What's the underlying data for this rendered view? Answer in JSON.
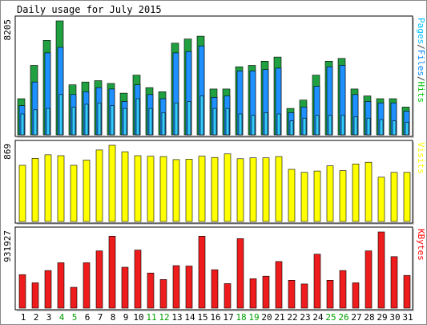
{
  "chart_data": {
    "type": "bar",
    "title": "Daily usage for July 2015",
    "categories": [
      "1",
      "2",
      "3",
      "4",
      "5",
      "6",
      "7",
      "8",
      "9",
      "10",
      "11",
      "12",
      "13",
      "14",
      "15",
      "16",
      "17",
      "18",
      "19",
      "20",
      "21",
      "22",
      "23",
      "24",
      "25",
      "26",
      "27",
      "28",
      "29",
      "30",
      "31"
    ],
    "weekend_days": [
      "4",
      "5",
      "11",
      "12",
      "18",
      "19",
      "25",
      "26"
    ],
    "panels": [
      {
        "id": "hits-files-pages",
        "ymax": 8205,
        "ymax_label": "8205",
        "right_labels": [
          {
            "text": "Pages",
            "color": "#00c0ff"
          },
          {
            "text": "/",
            "color": "#333333"
          },
          {
            "text": "Files",
            "color": "#0080ff"
          },
          {
            "text": "/",
            "color": "#333333"
          },
          {
            "text": "Hits",
            "color": "#00c000"
          }
        ],
        "series": [
          {
            "name": "Hits",
            "color": "#20a040",
            "values": [
              2600,
              5000,
              6800,
              8205,
              3600,
              3800,
              3900,
              3700,
              3000,
              4300,
              3400,
              3100,
              6600,
              6900,
              7100,
              3300,
              3300,
              4900,
              5000,
              5300,
              5600,
              1900,
              2500,
              4300,
              5300,
              5500,
              3300,
              2800,
              2600,
              2600,
              2000
            ]
          },
          {
            "name": "Files",
            "color": "#1e90ff",
            "values": [
              2100,
              3800,
              5900,
              6300,
              2900,
              3100,
              3400,
              3300,
              2400,
              3600,
              2900,
              2600,
              5900,
              6000,
              6400,
              2700,
              2800,
              4600,
              4600,
              4700,
              4800,
              1600,
              2000,
              3500,
              4900,
              5000,
              2900,
              2400,
              2300,
              2300,
              1700
            ]
          },
          {
            "name": "Pages",
            "color": "#33ccff",
            "values": [
              1500,
              1800,
              1900,
              2900,
              2000,
              2200,
              2300,
              2100,
              1900,
              2600,
              1900,
              1600,
              2300,
              2400,
              2800,
              1900,
              1900,
              1500,
              1400,
              1600,
              1500,
              1000,
              1200,
              1400,
              1400,
              1400,
              1300,
              1200,
              1100,
              1000,
              900
            ]
          }
        ]
      },
      {
        "id": "visits",
        "ymax": 869,
        "ymax_label": "869",
        "right_labels": [
          {
            "text": "Visits",
            "color": "#ffff00"
          }
        ],
        "series": [
          {
            "name": "Visits",
            "color": "#ffff00",
            "values": [
              640,
              720,
              760,
              750,
              640,
              700,
              815,
              869,
              795,
              750,
              745,
              740,
              705,
              710,
              745,
              730,
              770,
              715,
              725,
              725,
              740,
              595,
              560,
              575,
              635,
              580,
              655,
              675,
              505,
              560,
              560
            ]
          }
        ]
      },
      {
        "id": "kbytes",
        "ymax": 931927,
        "ymax_label": "931927",
        "right_labels": [
          {
            "text": "KBytes",
            "color": "#ff0000"
          }
        ],
        "series": [
          {
            "name": "KBytes",
            "color": "#ee1c1c",
            "values": [
              410000,
              310000,
              460000,
              555000,
              255000,
              555000,
              700000,
              880000,
              500000,
              710000,
              430000,
              350000,
              520000,
              515000,
              880000,
              470000,
              300000,
              850000,
              360000,
              390000,
              570000,
              340000,
              295000,
              660000,
              340000,
              460000,
              310000,
              700000,
              931927,
              630000,
              400000
            ]
          }
        ]
      }
    ]
  }
}
